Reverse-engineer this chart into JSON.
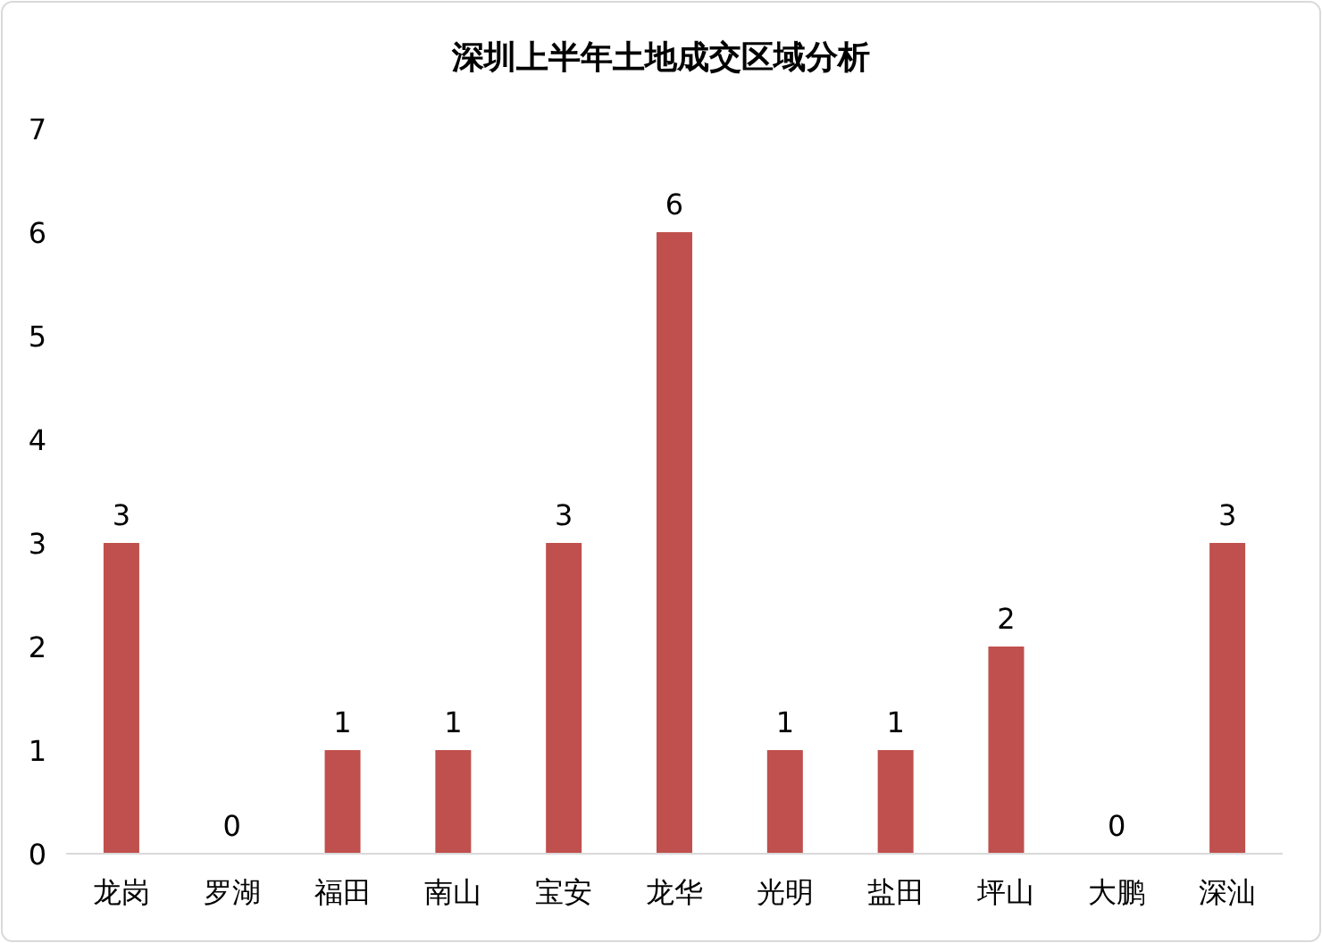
{
  "chart_data": {
    "type": "bar",
    "title": "深圳上半年土地成交区域分析",
    "categories": [
      "龙岗",
      "罗湖",
      "福田",
      "南山",
      "宝安",
      "龙华",
      "光明",
      "盐田",
      "坪山",
      "大鹏",
      "深汕"
    ],
    "values": [
      3,
      0,
      1,
      1,
      3,
      6,
      1,
      1,
      2,
      0,
      3
    ],
    "color": "#c0504d",
    "ylim": [
      0,
      7
    ],
    "yticks": [
      0,
      1,
      2,
      3,
      4,
      5,
      6,
      7
    ],
    "data_labels": true,
    "grid": false,
    "legend": false
  }
}
